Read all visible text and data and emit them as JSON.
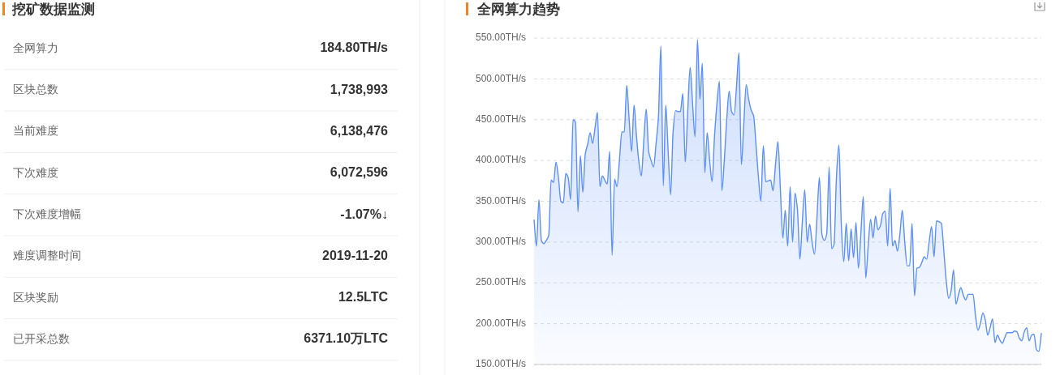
{
  "chart_data": [
    {
      "type": "other",
      "title": "挖矿数据监测",
      "categories": [
        "全网算力",
        "区块总数",
        "当前难度",
        "下次难度",
        "下次难度增幅",
        "难度调整时间",
        "区块奖励",
        "已开采总数"
      ],
      "value_labels": [
        "184.80TH/s",
        "1,738,993",
        "6,138,476",
        "6,072,596",
        "-1.07%↓",
        "2019-11-20",
        "12.5LTC",
        "6371.10万LTC"
      ]
    },
    {
      "type": "area",
      "title": "全网算力趋势",
      "color": "#5b8ff9",
      "categories": [
        null,
        null,
        null,
        null,
        null,
        null,
        null,
        null,
        null,
        null,
        null,
        null,
        null,
        null,
        null,
        null,
        null,
        null,
        null,
        null,
        null,
        null,
        null,
        null,
        null,
        null,
        null,
        null,
        null,
        null,
        null,
        null,
        null,
        null,
        null,
        null,
        null,
        null,
        null,
        null,
        null,
        null,
        null,
        null,
        null,
        null,
        null,
        null,
        null,
        null,
        null,
        null,
        null,
        null,
        null,
        null,
        null,
        null,
        null,
        null,
        null,
        null,
        null,
        null,
        null,
        null,
        null,
        null,
        null,
        null,
        null,
        null,
        null,
        null,
        null,
        null,
        null,
        null,
        null,
        null,
        null,
        null,
        null,
        null,
        null,
        null,
        null,
        null,
        null,
        null,
        null,
        null,
        null,
        null,
        null,
        null,
        null,
        null,
        null,
        null,
        null,
        null,
        null,
        null,
        null,
        null,
        null,
        null,
        null,
        null,
        null,
        null,
        null,
        null,
        null,
        null,
        null,
        null,
        null,
        null,
        null,
        null,
        null,
        null,
        null,
        null,
        null,
        null,
        null,
        null,
        null,
        null,
        null,
        null,
        null,
        null,
        null,
        null,
        null,
        null,
        null,
        null,
        null,
        null,
        null,
        null,
        null,
        null,
        null,
        null,
        null,
        null,
        null,
        null,
        null,
        null,
        null,
        null,
        null,
        null,
        null,
        null,
        null,
        null,
        null,
        null,
        null,
        null,
        null,
        null,
        null,
        null,
        null,
        null,
        null,
        null,
        null,
        null,
        null,
        null,
        null,
        null,
        null,
        null,
        null,
        null,
        null,
        null,
        null,
        null,
        null,
        null,
        null,
        null,
        null,
        null,
        null,
        null,
        null,
        null,
        null,
        null,
        null,
        null,
        null,
        null,
        null,
        null,
        null
      ],
      "values": [
        327,
        295,
        352,
        302,
        298,
        302,
        308,
        376,
        373,
        398,
        379,
        350,
        348,
        384,
        379,
        352,
        450,
        447,
        337,
        406,
        361,
        408,
        420,
        434,
        421,
        440,
        459,
        368,
        381,
        376,
        371,
        411,
        284,
        377,
        368,
        400,
        435,
        435,
        492,
        450,
        411,
        468,
        430,
        398,
        381,
        425,
        463,
        411,
        400,
        392,
        420,
        453,
        540,
        369,
        468,
        410,
        358,
        435,
        461,
        460,
        460,
        482,
        398,
        460,
        514,
        470,
        429,
        548,
        475,
        519,
        385,
        434,
        400,
        374,
        430,
        470,
        497,
        363,
        400,
        450,
        485,
        460,
        456,
        490,
        532,
        395,
        445,
        493,
        475,
        462,
        455,
        420,
        380,
        350,
        418,
        374,
        375,
        376,
        363,
        395,
        423,
        365,
        305,
        339,
        295,
        368,
        300,
        360,
        340,
        279,
        325,
        364,
        300,
        322,
        300,
        285,
        330,
        379,
        310,
        302,
        310,
        392,
        292,
        297,
        380,
        419,
        320,
        276,
        323,
        277,
        316,
        281,
        324,
        268,
        310,
        356,
        256,
        295,
        328,
        305,
        332,
        315,
        320,
        335,
        338,
        295,
        366,
        295,
        302,
        289,
        310,
        339,
        300,
        271,
        271,
        323,
        234,
        268,
        269,
        275,
        282,
        279,
        300,
        319,
        282,
        326,
        325,
        323,
        290,
        253,
        231,
        240,
        266,
        224,
        235,
        244,
        235,
        229,
        236,
        236,
        236,
        210,
        192,
        200,
        213,
        205,
        186,
        195,
        206,
        177,
        186,
        180,
        176,
        183,
        189,
        189,
        189,
        191,
        190,
        182,
        179,
        190,
        195,
        179,
        186,
        187,
        168,
        166,
        188
      ],
      "ylim": [
        150,
        550
      ],
      "yticks": [
        {
          "value": 150,
          "label": "150.00TH/s"
        },
        {
          "value": 200,
          "label": "200.00TH/s"
        },
        {
          "value": 250,
          "label": "250.00TH/s"
        },
        {
          "value": 300,
          "label": "300.00TH/s"
        },
        {
          "value": 350,
          "label": "350.00TH/s"
        },
        {
          "value": 400,
          "label": "400.00TH/s"
        },
        {
          "value": 450,
          "label": "450.00TH/s"
        },
        {
          "value": 500,
          "label": "500.00TH/s"
        },
        {
          "value": 550,
          "label": "550.00TH/s"
        }
      ],
      "grid": "y",
      "tick_labels": "y"
    }
  ]
}
